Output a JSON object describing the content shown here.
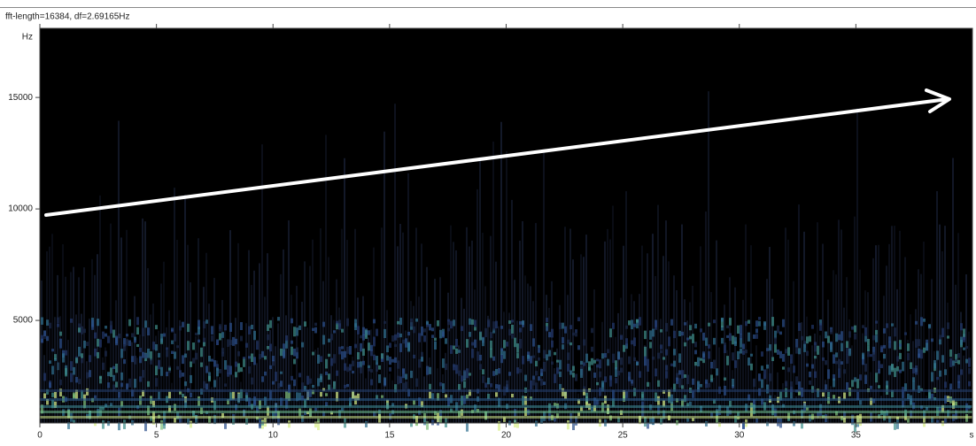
{
  "chart_data": {
    "type": "spectrogram",
    "title": "fft-length=16384, df=2.69165Hz",
    "y_label": "Hz",
    "x_label": "s",
    "xlim": [
      0,
      40
    ],
    "xticks": [
      0,
      5,
      10,
      15,
      20,
      25,
      30,
      35
    ],
    "ylim": [
      400,
      18100
    ],
    "yticks": [
      5000,
      10000,
      15000
    ]
  }
}
